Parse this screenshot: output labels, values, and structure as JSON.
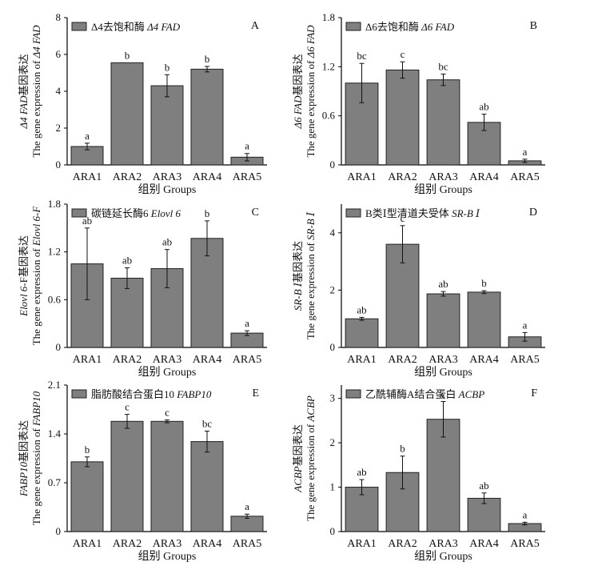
{
  "chart_data": [
    {
      "type": "bar",
      "panel": "A",
      "legend": [
        "Δ4去饱和酶 ",
        "Δ4 FAD"
      ],
      "ylabel_cn": [
        "Δ4 FAD",
        "基因表达"
      ],
      "ylabel_en": [
        "The gene expression of ",
        "Δ4 FAD"
      ],
      "xlabel": "组别  Groups",
      "categories": [
        "ARA1",
        "ARA2",
        "ARA3",
        "ARA4",
        "ARA5"
      ],
      "values": [
        1.0,
        5.55,
        4.3,
        5.2,
        0.42
      ],
      "errors": [
        0.18,
        0.0,
        0.6,
        0.15,
        0.2
      ],
      "letters": [
        "a",
        "b",
        "b",
        "b",
        "a"
      ],
      "ylim": [
        0,
        8
      ],
      "yticks": [
        "0",
        "2",
        "4",
        "6",
        "8"
      ],
      "ytick_values": [
        0,
        2,
        4,
        6,
        8
      ],
      "bar_color": "#7f7f7f"
    },
    {
      "type": "bar",
      "panel": "B",
      "legend": [
        "Δ6去饱和酶 ",
        "Δ6 FAD"
      ],
      "ylabel_cn": [
        "Δ6 FAD",
        "基因表达"
      ],
      "ylabel_en": [
        "The gene expression of ",
        "Δ6 FAD"
      ],
      "xlabel": "组别  Groups",
      "categories": [
        "ARA1",
        "ARA2",
        "ARA3",
        "ARA4",
        "ARA5"
      ],
      "values": [
        1.0,
        1.16,
        1.04,
        0.52,
        0.05
      ],
      "errors": [
        0.24,
        0.1,
        0.07,
        0.1,
        0.02
      ],
      "letters": [
        "bc",
        "c",
        "bc",
        "ab",
        "a"
      ],
      "ylim": [
        0,
        1.8
      ],
      "yticks": [
        "0",
        "0.6",
        "1.2",
        "1.8"
      ],
      "ytick_values": [
        0,
        0.6,
        1.2,
        1.8
      ],
      "bar_color": "#7f7f7f"
    },
    {
      "type": "bar",
      "panel": "C",
      "legend": [
        "碳链延长酶6 ",
        "Elovl 6"
      ],
      "ylabel_cn": [
        "Elovl 6",
        "-F基因表达"
      ],
      "ylabel_en": [
        "The gene expression of ",
        "Elovl 6-F"
      ],
      "xlabel": "组别  Groups",
      "categories": [
        "ARA1",
        "ARA2",
        "ARA3",
        "ARA4",
        "ARA5"
      ],
      "values": [
        1.05,
        0.87,
        0.99,
        1.37,
        0.18
      ],
      "errors": [
        0.45,
        0.13,
        0.24,
        0.22,
        0.03
      ],
      "letters": [
        "ab",
        "ab",
        "ab",
        "b",
        "a"
      ],
      "ylim": [
        0,
        1.8
      ],
      "yticks": [
        "0",
        "0.6",
        "1.2",
        "1.8"
      ],
      "ytick_values": [
        0,
        0.6,
        1.2,
        1.8
      ],
      "bar_color": "#7f7f7f"
    },
    {
      "type": "bar",
      "panel": "D",
      "legend": [
        "B类Ⅰ型清道夫受体 ",
        "SR-B Ⅰ"
      ],
      "ylabel_cn": [
        "SR-B Ⅰ",
        "基因表达"
      ],
      "ylabel_en": [
        "The gene expression of ",
        "SR-B Ⅰ"
      ],
      "xlabel": "组别  Groups",
      "categories": [
        "ARA1",
        "ARA2",
        "ARA3",
        "ARA4",
        "ARA5"
      ],
      "values": [
        1.0,
        3.6,
        1.87,
        1.93,
        0.37
      ],
      "errors": [
        0.05,
        0.65,
        0.08,
        0.05,
        0.15
      ],
      "letters": [
        "ab",
        "c",
        "ab",
        "b",
        "a"
      ],
      "ylim": [
        0,
        5
      ],
      "yticks": [
        "0",
        "2",
        "4"
      ],
      "ytick_values": [
        0,
        2,
        4
      ],
      "bar_color": "#7f7f7f"
    },
    {
      "type": "bar",
      "panel": "E",
      "legend": [
        "脂肪酸结合蛋白10 ",
        "FABP10"
      ],
      "ylabel_cn": [
        "FABP10",
        "基因表达"
      ],
      "ylabel_en": [
        "The gene expression of ",
        "FABP10"
      ],
      "xlabel": "组别  Groups",
      "categories": [
        "ARA1",
        "ARA2",
        "ARA3",
        "ARA4",
        "ARA5"
      ],
      "values": [
        1.0,
        1.58,
        1.58,
        1.29,
        0.22
      ],
      "errors": [
        0.07,
        0.1,
        0.02,
        0.15,
        0.03
      ],
      "letters": [
        "b",
        "c",
        "c",
        "bc",
        "a"
      ],
      "ylim": [
        0,
        2.1
      ],
      "yticks": [
        "0",
        "0.7",
        "1.4",
        "2.1"
      ],
      "ytick_values": [
        0,
        0.7,
        1.4,
        2.1
      ],
      "bar_color": "#7f7f7f"
    },
    {
      "type": "bar",
      "panel": "F",
      "legend": [
        "乙酰辅酶A结合蛋白 ",
        "ACBP"
      ],
      "ylabel_cn": [
        "ACBP",
        "基因表达"
      ],
      "ylabel_en": [
        "The gene expression of ",
        "ACBP"
      ],
      "xlabel": "组别  Groups",
      "categories": [
        "ARA1",
        "ARA2",
        "ARA3",
        "ARA4",
        "ARA5"
      ],
      "values": [
        1.0,
        1.33,
        2.53,
        0.75,
        0.18
      ],
      "errors": [
        0.17,
        0.37,
        0.4,
        0.12,
        0.03
      ],
      "letters": [
        "ab",
        "b",
        "c",
        "ab",
        "a"
      ],
      "ylim": [
        0,
        3.3
      ],
      "yticks": [
        "0",
        "1",
        "2",
        "3"
      ],
      "ytick_values": [
        0,
        1,
        2,
        3
      ],
      "bar_color": "#7f7f7f"
    }
  ]
}
